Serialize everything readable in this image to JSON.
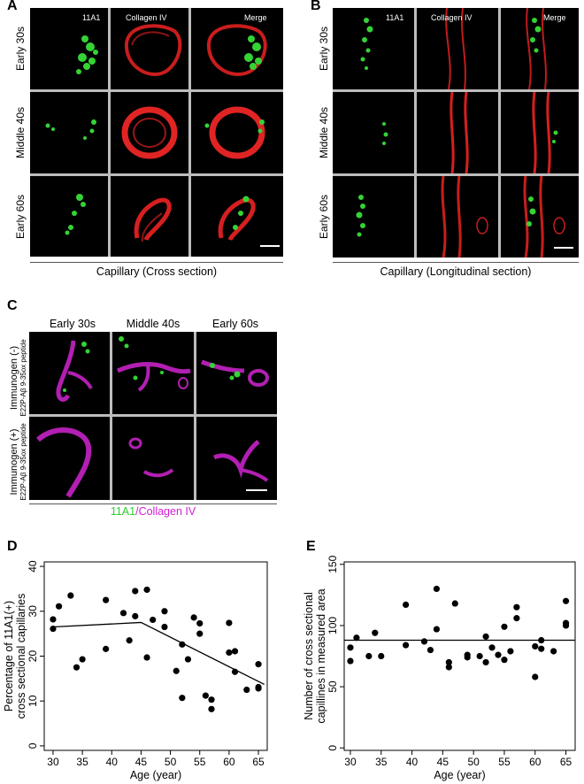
{
  "panels": {
    "a": {
      "letter": "A",
      "columns": [
        "11A1",
        "Collagen IV",
        "Merge"
      ],
      "rows": [
        "Early 30s",
        "Middle 40s",
        "Early 60s"
      ],
      "caption": "Capillary (Cross section)"
    },
    "b": {
      "letter": "B",
      "columns": [
        "11A1",
        "Collagen IV",
        "Merge"
      ],
      "rows": [
        "Early 30s",
        "Middle 40s",
        "Early 60s"
      ],
      "caption": "Capillary (Longitudinal section)"
    },
    "c": {
      "letter": "C",
      "columns": [
        "Early 30s",
        "Middle 40s",
        "Early 60s"
      ],
      "rows": [
        {
          "main": "Immunogen (-)",
          "sub": "E22P-Aβ 9-35ox peptide"
        },
        {
          "main": "Immunogen (+)",
          "sub": "E22P-Aβ 9-35ox peptide"
        }
      ],
      "caption_green": "11A1",
      "caption_sep": "/",
      "caption_magenta": "Collagen IV",
      "green": "#2bd12b",
      "magenta": "#d21fd2"
    },
    "d": {
      "letter": "D"
    },
    "e": {
      "letter": "E"
    }
  },
  "chart_data": [
    {
      "type": "scatter",
      "panel": "D",
      "xlabel": "Age (year)",
      "ylabel": "Percentage of 11A1(+) cross sectional capillaries",
      "ylabel_lines": [
        "Percentage of 11A1(+)",
        "cross sectional capillaries"
      ],
      "xlim": [
        28.5,
        66.5
      ],
      "ylim": [
        -1,
        41
      ],
      "xticks": [
        30,
        35,
        40,
        45,
        50,
        55,
        60,
        65
      ],
      "yticks": [
        0,
        10,
        20,
        30,
        40
      ],
      "points": [
        [
          30,
          28.2
        ],
        [
          30,
          26.1
        ],
        [
          31,
          31.1
        ],
        [
          33,
          33.5
        ],
        [
          34,
          17.5
        ],
        [
          35,
          19.3
        ],
        [
          39,
          32.5
        ],
        [
          39,
          21.6
        ],
        [
          42,
          29.6
        ],
        [
          43,
          23.5
        ],
        [
          44,
          34.5
        ],
        [
          44,
          28.9
        ],
        [
          46,
          34.8
        ],
        [
          46,
          19.7
        ],
        [
          47,
          28.1
        ],
        [
          49,
          30.0
        ],
        [
          49,
          26.5
        ],
        [
          51,
          16.7
        ],
        [
          52,
          22.6
        ],
        [
          52,
          10.7
        ],
        [
          53,
          19.3
        ],
        [
          54,
          28.6
        ],
        [
          55,
          27.3
        ],
        [
          55,
          25.0
        ],
        [
          56,
          11.2
        ],
        [
          57,
          10.3
        ],
        [
          57,
          8.2
        ],
        [
          60,
          27.4
        ],
        [
          60,
          20.8
        ],
        [
          61,
          21.1
        ],
        [
          61,
          16.5
        ],
        [
          63,
          12.5
        ],
        [
          65,
          18.2
        ],
        [
          65,
          12.8
        ],
        [
          65,
          13.1
        ]
      ],
      "fit_line": [
        [
          30,
          26.5
        ],
        [
          45,
          27.5
        ],
        [
          66,
          13.7
        ]
      ],
      "grid": false
    },
    {
      "type": "scatter",
      "panel": "E",
      "xlabel": "Age (year)",
      "ylabel": "Number of cross sectional capillines in measured area",
      "ylabel_lines": [
        "Number of cross sectional",
        "capillines in measured area"
      ],
      "xlim": [
        29,
        66.5
      ],
      "ylim": [
        -2,
        152
      ],
      "xticks": [
        30,
        35,
        40,
        45,
        50,
        55,
        60,
        65
      ],
      "yticks": [
        0,
        50,
        100,
        150
      ],
      "points": [
        [
          30,
          82
        ],
        [
          30,
          71
        ],
        [
          31,
          90
        ],
        [
          33,
          75
        ],
        [
          34,
          94
        ],
        [
          35,
          75
        ],
        [
          39,
          117
        ],
        [
          39,
          84
        ],
        [
          42,
          87
        ],
        [
          43,
          80
        ],
        [
          44,
          130
        ],
        [
          44,
          97
        ],
        [
          46,
          70
        ],
        [
          46,
          66
        ],
        [
          47,
          118
        ],
        [
          49,
          74
        ],
        [
          49,
          76
        ],
        [
          51,
          75
        ],
        [
          52,
          91
        ],
        [
          52,
          70
        ],
        [
          53,
          82
        ],
        [
          54,
          76
        ],
        [
          55,
          72
        ],
        [
          55,
          99
        ],
        [
          56,
          79
        ],
        [
          57,
          106
        ],
        [
          57,
          115
        ],
        [
          60,
          83
        ],
        [
          60,
          58
        ],
        [
          61,
          88
        ],
        [
          61,
          81
        ],
        [
          63,
          79
        ],
        [
          65,
          120
        ],
        [
          65,
          102
        ],
        [
          65,
          100
        ]
      ],
      "fit_line": [
        [
          29,
          88
        ],
        [
          66.5,
          88
        ]
      ],
      "grid": false
    }
  ]
}
